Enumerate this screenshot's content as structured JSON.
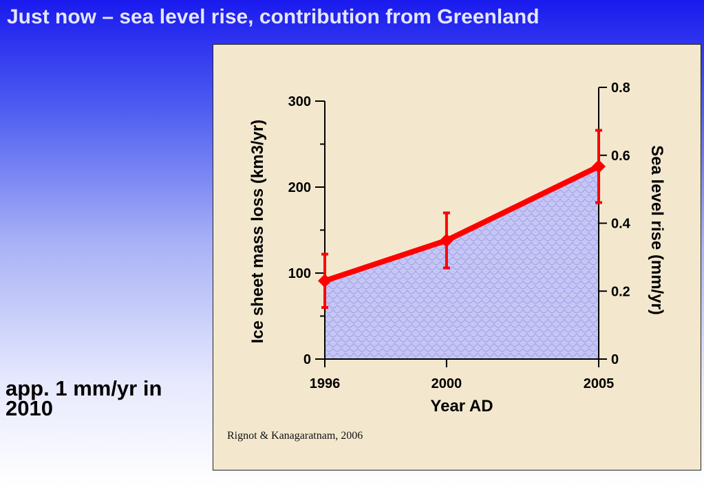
{
  "slide": {
    "title": "Just now – sea level rise, contribution from Greenland",
    "note": "app. 1 mm/yr in 2010"
  },
  "colors": {
    "line": "#ff0000",
    "fill": "#c6c6f6",
    "panel": "#f3e8ce"
  },
  "chart_data": {
    "type": "line",
    "xlabel": "Year AD",
    "ylabel": "Ice sheet mass loss (km3/yr)",
    "y2label": "Sea level rise (mm/yr)",
    "x_ticks": [
      1996,
      2000,
      2005
    ],
    "xlim": [
      1996,
      2005
    ],
    "ylim": [
      0,
      300
    ],
    "y_ticks": [
      0,
      100,
      200,
      300
    ],
    "y_minor_ticks": [
      50,
      150,
      250
    ],
    "y2lim": [
      0,
      0.8
    ],
    "y2_ticks": [
      "0",
      "0.2",
      "0.4",
      "0.6",
      "0.8"
    ],
    "area_fill": true,
    "points": [
      {
        "x": 1996,
        "y": 91,
        "low": 60,
        "high": 122
      },
      {
        "x": 2000,
        "y": 138,
        "low": 106,
        "high": 170
      },
      {
        "x": 2005,
        "y": 224,
        "low": 182,
        "high": 266
      }
    ],
    "source": "Rignot & Kanagaratnam, 2006"
  }
}
